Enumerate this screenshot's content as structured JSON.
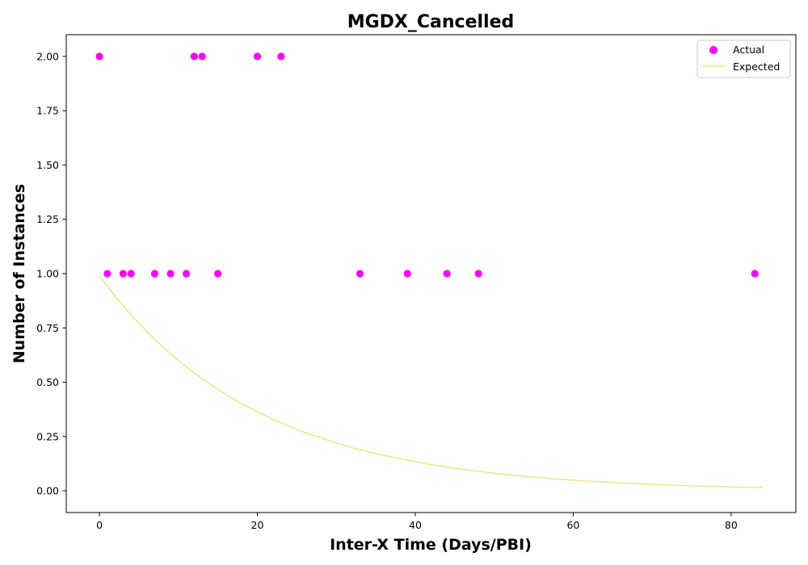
{
  "chart_data": {
    "type": "scatter",
    "title": "MGDX_Cancelled",
    "xlabel": "Inter-X Time (Days/PBI)",
    "ylabel": "Number of Instances",
    "xlim": [
      -4.2,
      88.2
    ],
    "ylim": [
      -0.1,
      2.1
    ],
    "x_ticks": [
      0,
      20,
      40,
      60,
      80
    ],
    "y_ticks": [
      "0.00",
      "0.25",
      "0.50",
      "0.75",
      "1.00",
      "1.25",
      "1.50",
      "1.75",
      "2.00"
    ],
    "grid": false,
    "legend_position": "top-right",
    "series": [
      {
        "name": "Actual",
        "kind": "scatter",
        "color": "#ff00ff",
        "points": [
          [
            0,
            2
          ],
          [
            1,
            1
          ],
          [
            3,
            1
          ],
          [
            4,
            1
          ],
          [
            7,
            1
          ],
          [
            9,
            1
          ],
          [
            11,
            1
          ],
          [
            12,
            2
          ],
          [
            13,
            2
          ],
          [
            15,
            1
          ],
          [
            20,
            2
          ],
          [
            23,
            2
          ],
          [
            33,
            1
          ],
          [
            39,
            1
          ],
          [
            44,
            1
          ],
          [
            48,
            1
          ],
          [
            83,
            1
          ]
        ]
      },
      {
        "name": "Expected",
        "kind": "line",
        "color": "#f0e68c",
        "points": [
          [
            0,
            0.99
          ],
          [
            2,
            0.895
          ],
          [
            4,
            0.81
          ],
          [
            6,
            0.733
          ],
          [
            8,
            0.663
          ],
          [
            10,
            0.6
          ],
          [
            12,
            0.543
          ],
          [
            14,
            0.491
          ],
          [
            16,
            0.444
          ],
          [
            18,
            0.402
          ],
          [
            20,
            0.364
          ],
          [
            22,
            0.329
          ],
          [
            24,
            0.298
          ],
          [
            26,
            0.269
          ],
          [
            28,
            0.244
          ],
          [
            30,
            0.22
          ],
          [
            32,
            0.199
          ],
          [
            34,
            0.18
          ],
          [
            36,
            0.163
          ],
          [
            38,
            0.148
          ],
          [
            40,
            0.134
          ],
          [
            42,
            0.121
          ],
          [
            44,
            0.109
          ],
          [
            46,
            0.099
          ],
          [
            48,
            0.09
          ],
          [
            50,
            0.081
          ],
          [
            52,
            0.073
          ],
          [
            54,
            0.066
          ],
          [
            56,
            0.06
          ],
          [
            58,
            0.054
          ],
          [
            60,
            0.049
          ],
          [
            62,
            0.044
          ],
          [
            64,
            0.04
          ],
          [
            66,
            0.036
          ],
          [
            68,
            0.033
          ],
          [
            70,
            0.03
          ],
          [
            72,
            0.027
          ],
          [
            74,
            0.024
          ],
          [
            76,
            0.022
          ],
          [
            78,
            0.02
          ],
          [
            80,
            0.018
          ],
          [
            82,
            0.016
          ],
          [
            84,
            0.015
          ]
        ]
      }
    ]
  }
}
